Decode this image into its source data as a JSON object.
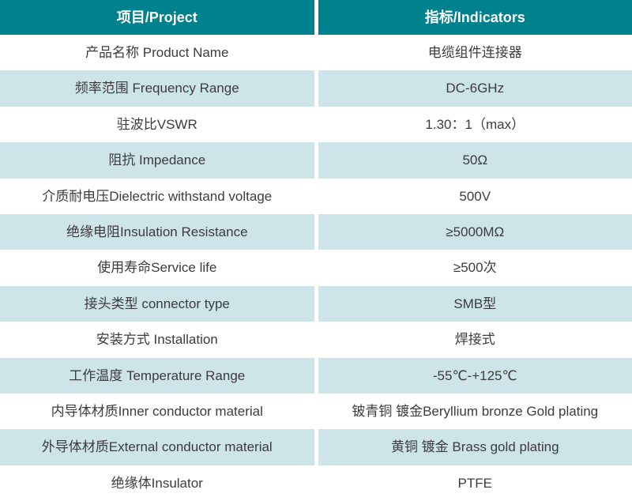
{
  "colors": {
    "header_bg": "#00828E",
    "alt_row_bg": "#cde4e9",
    "text": "#3c3c3c",
    "header_text": "#ffffff"
  },
  "table": {
    "headers": [
      {
        "label": "项目/Project"
      },
      {
        "label": "指标/Indicators"
      }
    ],
    "rows": [
      {
        "label": "产品名称 Product Name",
        "value": "电缆组件连接器"
      },
      {
        "label": "频率范围 Frequency Range",
        "value": "DC-6GHz"
      },
      {
        "label": "驻波比VSWR",
        "value": "1.30：1（max）"
      },
      {
        "label": "阻抗 Impedance",
        "value": "50Ω"
      },
      {
        "label": "介质耐电压Dielectric withstand voltage",
        "value": "500V"
      },
      {
        "label": "绝缘电阻Insulation Resistance",
        "value": "≥5000MΩ"
      },
      {
        "label": "使用寿命Service life",
        "value": "≥500次"
      },
      {
        "label": "接头类型  connector type",
        "value": "SMB型"
      },
      {
        "label": "安装方式 Installation",
        "value": "焊接式"
      },
      {
        "label": "工作温度 Temperature Range",
        "value": "-55℃-+125℃"
      },
      {
        "label": "内导体材质Inner conductor material",
        "value": "铍青铜 镀金Beryllium bronze Gold plating"
      },
      {
        "label": "外导体材质External conductor material",
        "value": "黄铜 镀金 Brass gold plating"
      },
      {
        "label": "绝缘体Insulator",
        "value": "PTFE"
      }
    ]
  }
}
